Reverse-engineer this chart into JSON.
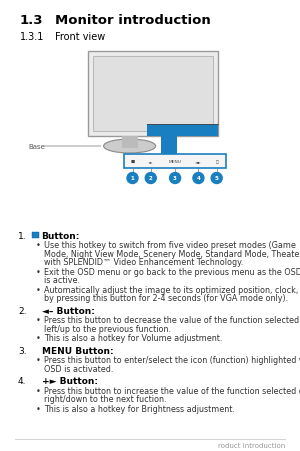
{
  "bg_color": "#ffffff",
  "title1": "1.3",
  "title2": "Monitor introduction",
  "subtitle1": "1.3.1",
  "subtitle2": "Front view",
  "footer_text": "roduct introduction",
  "body_items": [
    {
      "num": "1.",
      "has_icon": true,
      "label_text": "Button:",
      "bullets": [
        "Use this hotkey to switch from five video preset modes (Game\nMode, Night View Mode, Scenery Mode, Standard Mode, Theater Mode)\nwith SPLENDID™ Video Enhancement Technology.",
        "Exit the OSD menu or go back to the previous menu as the OSD menu\nis active.",
        "Automatically adjust the image to its optimized position, clock, and phase\nby pressing this button for 2-4 seconds (for VGA mode only)."
      ]
    },
    {
      "num": "2.",
      "has_icon": false,
      "label_text": "◄– Button:",
      "bullets": [
        "Press this button to decrease the value of the function selected or move\nleft/up to the previous function.",
        "This is also a hotkey for Volume adjustment."
      ]
    },
    {
      "num": "3.",
      "has_icon": false,
      "label_text": "MENU Button:",
      "bullets": [
        "Press this button to enter/select the icon (function) highlighted while the\nOSD is activated."
      ]
    },
    {
      "num": "4.",
      "has_icon": false,
      "label_text": "+► Button:",
      "bullets": [
        "Press this button to increase the value of the function selected or move\nright/down to the next fuction.",
        "This is also a hotkey for Brightness adjustment."
      ]
    }
  ],
  "blue": "#1a7fc1",
  "gray_line": "#aaaaaa",
  "gray_text": "#666666",
  "body_text": "#333333"
}
